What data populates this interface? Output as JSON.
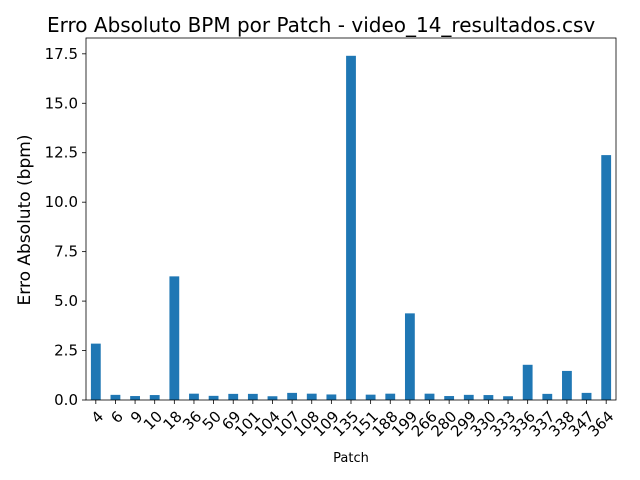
{
  "chart_data": {
    "type": "bar",
    "title": "Erro Absoluto BPM por Patch - video_14_resultados.csv",
    "xlabel": "Patch",
    "ylabel": "Erro Absoluto (bpm)",
    "ylim": [
      0,
      18.3
    ],
    "yticks": [
      "0.0",
      "2.5",
      "5.0",
      "7.5",
      "10.0",
      "12.5",
      "15.0",
      "17.5"
    ],
    "grid": false,
    "legend": "none",
    "bar_color": "#1f77b4",
    "categories": [
      "4",
      "6",
      "9",
      "10",
      "18",
      "36",
      "50",
      "69",
      "101",
      "104",
      "107",
      "108",
      "109",
      "135",
      "151",
      "188",
      "199",
      "266",
      "280",
      "299",
      "330",
      "333",
      "336",
      "337",
      "338",
      "347",
      "364"
    ],
    "values": [
      2.85,
      0.26,
      0.2,
      0.25,
      6.25,
      0.32,
      0.21,
      0.31,
      0.31,
      0.19,
      0.36,
      0.32,
      0.28,
      17.4,
      0.27,
      0.32,
      4.38,
      0.32,
      0.2,
      0.26,
      0.25,
      0.19,
      1.78,
      0.31,
      1.47,
      0.36,
      12.38
    ]
  }
}
